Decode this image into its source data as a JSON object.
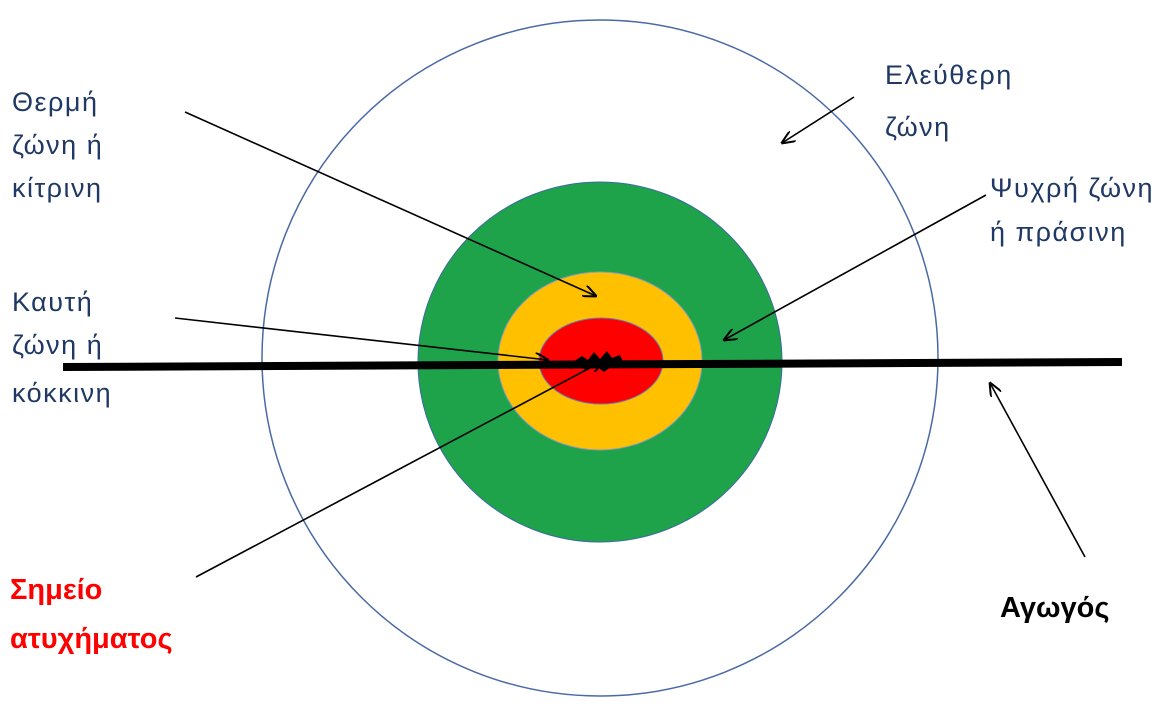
{
  "colors": {
    "zone_text": "#1f3864",
    "accident_text": "#ff0000",
    "pipe_text": "#000000",
    "outer_circle_stroke": "#4a6aa5",
    "green_zone": "#1fa34a",
    "yellow_zone": "#ffc000",
    "red_zone": "#ff0000",
    "pipe": "#000000",
    "arrow": "#000000"
  },
  "labels": {
    "warm_zone": [
      "Θερμή",
      "ζώνη ή",
      "κίτρινη"
    ],
    "free_zone": [
      "Ελεύθερη",
      "ζώνη"
    ],
    "cold_zone": [
      "Ψυχρή ζώνη",
      "ή πράσινη"
    ],
    "hot_zone": [
      "Καυτή",
      "ζώνη ή",
      "κόκκινη"
    ],
    "accident_point": [
      "Σημείο",
      "ατυχήματος"
    ],
    "pipe": "Αγωγός"
  }
}
